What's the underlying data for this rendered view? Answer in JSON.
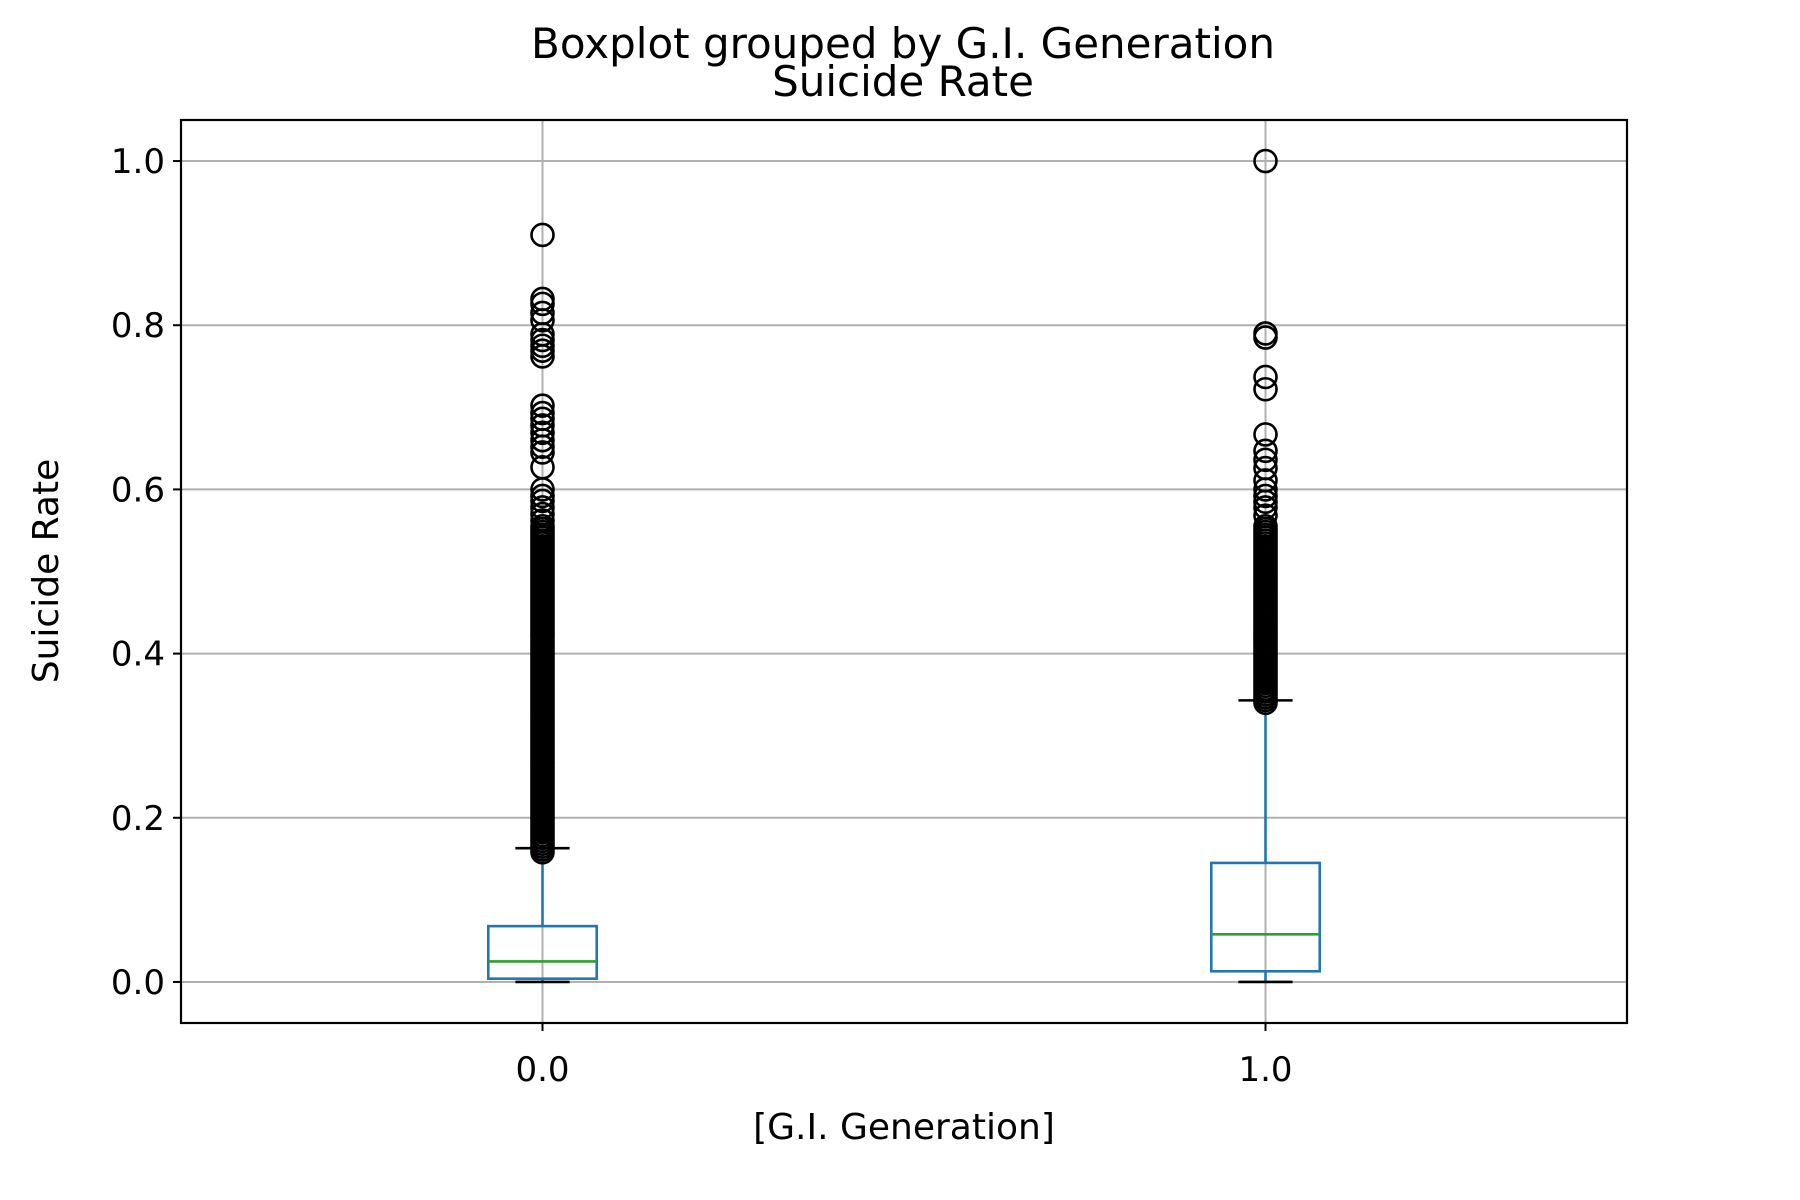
{
  "chart_data": {
    "type": "boxplot",
    "suptitle": "Boxplot grouped by G.I. Generation",
    "title": "Suicide Rate",
    "xlabel": "[G.I. Generation]",
    "ylabel": "Suicide Rate",
    "ylim": [
      -0.05,
      1.05
    ],
    "yticks": [
      0.0,
      0.2,
      0.4,
      0.6,
      0.8,
      1.0
    ],
    "ytick_labels": [
      "0.0",
      "0.2",
      "0.4",
      "0.6",
      "0.8",
      "1.0"
    ],
    "grid": true,
    "colors": {
      "box": "#1f77b4",
      "median": "#2ca02c",
      "flier": "#000000",
      "grid": "#b0b0b0"
    },
    "groups": [
      {
        "label": "0.0",
        "whisker_low": 0.0,
        "q1": 0.004,
        "median": 0.025,
        "q3": 0.068,
        "whisker_high": 0.163,
        "outlier_range": [
          0.158,
          0.555
        ],
        "outliers": [
          0.91,
          0.832,
          0.826,
          0.815,
          0.806,
          0.789,
          0.782,
          0.775,
          0.769,
          0.762,
          0.702,
          0.693,
          0.686,
          0.678,
          0.669,
          0.66,
          0.652,
          0.645,
          0.627,
          0.6,
          0.592,
          0.586,
          0.578,
          0.57,
          0.562
        ]
      },
      {
        "label": "1.0",
        "whisker_low": 0.0,
        "q1": 0.013,
        "median": 0.058,
        "q3": 0.145,
        "whisker_high": 0.343,
        "outlier_range": [
          0.34,
          0.555
        ],
        "outliers": [
          1.0,
          0.79,
          0.785,
          0.737,
          0.722,
          0.667,
          0.647,
          0.636,
          0.626,
          0.611,
          0.6,
          0.592,
          0.585,
          0.578,
          0.568
        ]
      }
    ]
  }
}
